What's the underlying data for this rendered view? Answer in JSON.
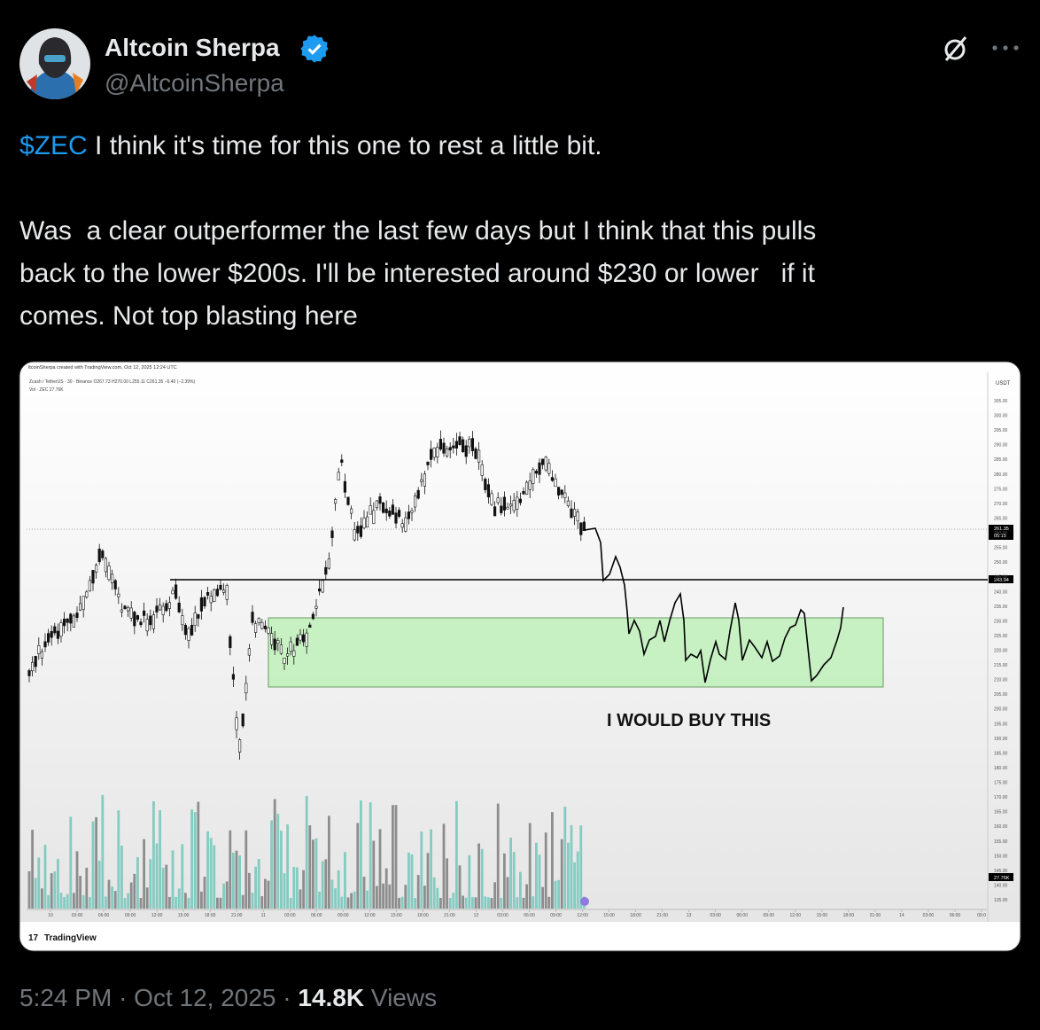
{
  "author": {
    "name": "Altcoin Sherpa",
    "handle": "@AltcoinSherpa"
  },
  "tweet": {
    "ticker": "$ZEC",
    "lines": [
      " I think it's time for this one to rest a little bit.",
      "Was  a clear outperformer the last few days but I think that this pulls",
      "back to the lower $200s. I'll be interested around $230 or lower   if it",
      "comes. Not top blasting here"
    ]
  },
  "image": {
    "header": [
      "ltcoinSherpa created with TradingView.com, Oct 12, 2025 12:24 UTC",
      "Zcash / TetherUS · 30 · Binance  O267.73  H270.00  L255.11  C261.35  −6.40 (−2.39%)",
      "Vol · ZEC  27.76K"
    ],
    "currency": "USDT",
    "price_axis": [
      "305.00",
      "300.00",
      "295.00",
      "290.00",
      "285.00",
      "280.00",
      "275.00",
      "270.00",
      "265.00",
      "260.00",
      "255.00",
      "250.00",
      "245.00",
      "240.00",
      "235.00",
      "230.00",
      "225.00",
      "220.00",
      "215.00",
      "210.00",
      "205.00",
      "200.00",
      "195.00",
      "190.00",
      "185.00",
      "180.00",
      "175.00",
      "170.00",
      "165.00",
      "160.00",
      "155.00",
      "150.00",
      "145.00",
      "140.00",
      "135.00"
    ],
    "time_axis": [
      "10",
      "03:00",
      "06:00",
      "09:00",
      "12:00",
      "15:00",
      "18:00",
      "21:00",
      "11",
      "03:00",
      "06:00",
      "09:00",
      "12:00",
      "15:00",
      "18:00",
      "21:00",
      "12",
      "03:00",
      "06:00",
      "09:00",
      "12:00",
      "15:00",
      "18:00",
      "21:00",
      "13",
      "03:00",
      "06:00",
      "09:00",
      "12:00",
      "15:00",
      "18:00",
      "21:00",
      "14",
      "03:00",
      "06:00",
      "09:0"
    ],
    "last_price": "261.35",
    "countdown": "05:15",
    "level": "243.94",
    "volume_tag": "27.76K",
    "annotation": "I WOULD BUY THIS",
    "logo": "TradingView"
  },
  "footer": {
    "time": "5:24 PM",
    "separator": "·",
    "date": "Oct 12, 2025",
    "views_count": "14.8K",
    "views_label": "Views"
  }
}
